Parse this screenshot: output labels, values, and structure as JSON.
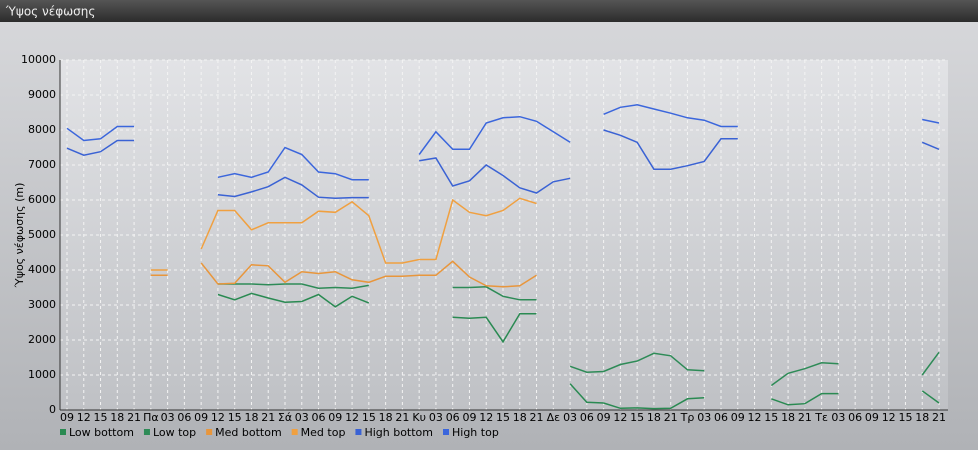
{
  "chart_data": {
    "type": "line",
    "title": "Ύψος νέφωσης",
    "y_label": "Ύψος νέφωσης (m)",
    "categories": [
      "09",
      "12",
      "15",
      "18",
      "21",
      "Πα",
      "03",
      "06",
      "09",
      "12",
      "15",
      "18",
      "21",
      "Σά",
      "03",
      "06",
      "09",
      "12",
      "15",
      "18",
      "21",
      "Κυ",
      "03",
      "06",
      "09",
      "12",
      "15",
      "18",
      "21",
      "Δε",
      "03",
      "06",
      "09",
      "12",
      "15",
      "18",
      "21",
      "Τρ",
      "03",
      "06",
      "09",
      "12",
      "15",
      "18",
      "21",
      "Τε",
      "03",
      "06",
      "09",
      "12",
      "15",
      "18",
      "21"
    ],
    "ylim": [
      0,
      10000
    ],
    "yticks": [
      0,
      1000,
      2000,
      3000,
      4000,
      5000,
      6000,
      7000,
      8000,
      9000,
      10000
    ],
    "grid": true,
    "series": [
      {
        "name": "Low bottom",
        "color": "#2a8a52",
        "values": [
          null,
          null,
          null,
          null,
          null,
          null,
          null,
          null,
          null,
          3300,
          3150,
          3330,
          3200,
          3080,
          3100,
          3300,
          2950,
          3250,
          3060,
          null,
          null,
          null,
          null,
          2650,
          2620,
          2650,
          1950,
          2750,
          2750,
          null,
          750,
          220,
          200,
          50,
          60,
          40,
          50,
          320,
          350,
          null,
          null,
          null,
          320,
          150,
          180,
          470,
          470,
          null,
          null,
          null,
          null,
          550,
          200
        ]
      },
      {
        "name": "Low top",
        "color": "#2e8b57",
        "values": [
          null,
          null,
          null,
          null,
          null,
          null,
          null,
          null,
          null,
          3600,
          3600,
          3600,
          3580,
          3600,
          3600,
          3480,
          3500,
          3480,
          3560,
          null,
          null,
          null,
          null,
          3500,
          3500,
          3520,
          3250,
          3150,
          3150,
          null,
          1250,
          1080,
          1100,
          1300,
          1400,
          1620,
          1550,
          1150,
          1120,
          null,
          null,
          null,
          700,
          1050,
          1180,
          1350,
          1320,
          null,
          null,
          null,
          null,
          1000,
          1650
        ]
      },
      {
        "name": "Med bottom",
        "color": "#e8963c",
        "values": [
          null,
          null,
          null,
          null,
          null,
          3850,
          3850,
          null,
          4200,
          3600,
          3620,
          4150,
          4120,
          3650,
          3950,
          3900,
          3950,
          3720,
          3650,
          3820,
          3820,
          3850,
          3850,
          4250,
          3800,
          3550,
          3520,
          3550,
          3850,
          null,
          null,
          null,
          null,
          null,
          null,
          null,
          null,
          null,
          null,
          null,
          null,
          null,
          null,
          null,
          null,
          null,
          null,
          null,
          null,
          null,
          null,
          null,
          null
        ]
      },
      {
        "name": "Med top",
        "color": "#f0a040",
        "values": [
          null,
          null,
          null,
          null,
          null,
          4000,
          4000,
          null,
          4600,
          5700,
          5700,
          5150,
          5350,
          5350,
          5350,
          5680,
          5650,
          5950,
          5550,
          4200,
          4200,
          4300,
          4300,
          6000,
          5650,
          5550,
          5700,
          6050,
          5900,
          null,
          null,
          null,
          null,
          null,
          null,
          null,
          null,
          null,
          null,
          null,
          null,
          null,
          null,
          null,
          null,
          null,
          null,
          null,
          null,
          null,
          null,
          null,
          null
        ]
      },
      {
        "name": "High bottom",
        "color": "#3a62d4",
        "values": [
          7480,
          7280,
          7380,
          7700,
          7700,
          null,
          null,
          null,
          null,
          6150,
          6100,
          6230,
          6380,
          6650,
          6430,
          6080,
          6050,
          6070,
          6070,
          null,
          null,
          7120,
          7200,
          6400,
          6550,
          7000,
          6700,
          6350,
          6200,
          6520,
          6620,
          null,
          8000,
          7850,
          7650,
          6880,
          6880,
          6980,
          7100,
          7750,
          7750,
          null,
          null,
          null,
          null,
          null,
          null,
          null,
          null,
          null,
          null,
          7650,
          7450
        ]
      },
      {
        "name": "High top",
        "color": "#3b66dc",
        "values": [
          8050,
          7700,
          7750,
          8100,
          8100,
          null,
          null,
          null,
          null,
          6650,
          6750,
          6650,
          6800,
          7500,
          7300,
          6800,
          6750,
          6580,
          6580,
          null,
          null,
          7300,
          7950,
          7450,
          7450,
          8200,
          8350,
          8380,
          8250,
          7950,
          7650,
          null,
          8450,
          8650,
          8720,
          8600,
          8480,
          8350,
          8280,
          8100,
          8100,
          null,
          null,
          null,
          null,
          null,
          null,
          null,
          null,
          null,
          null,
          8300,
          8200
        ]
      }
    ]
  }
}
